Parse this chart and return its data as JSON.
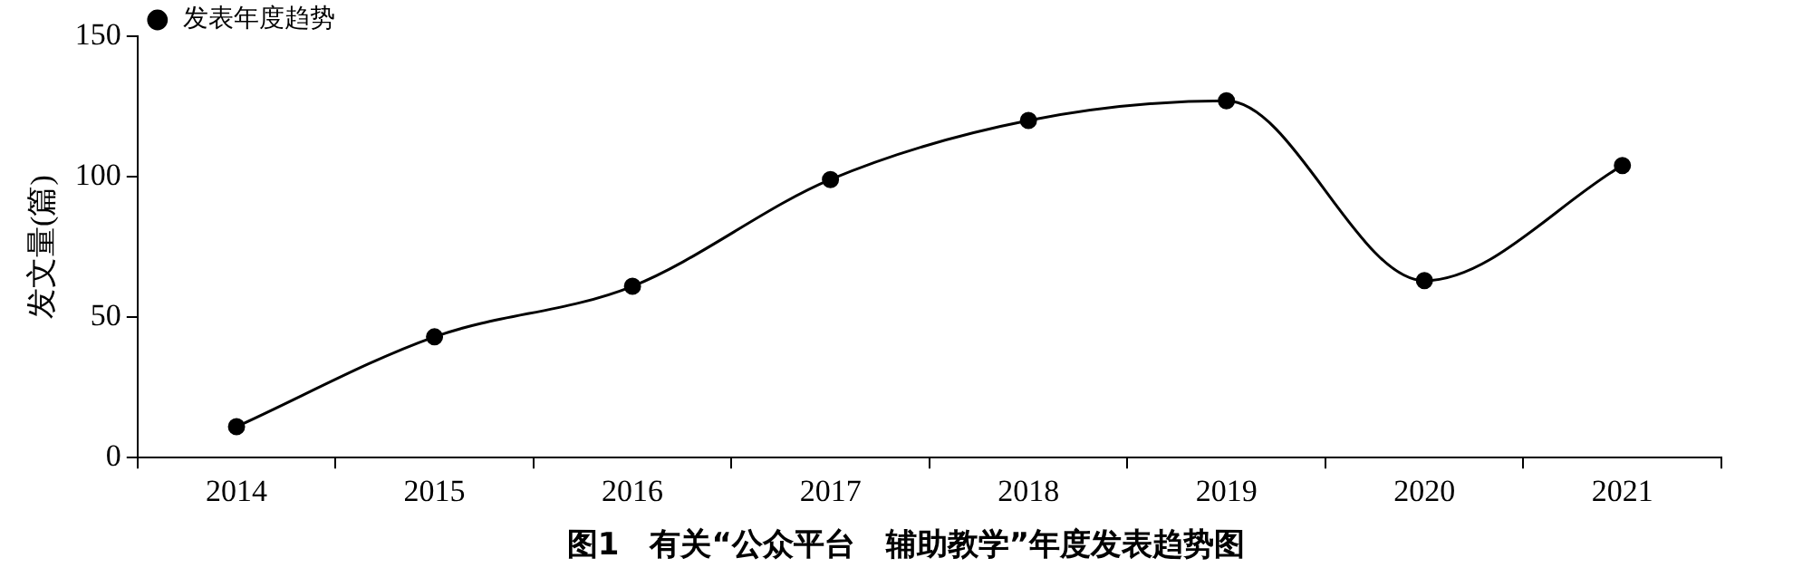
{
  "chart_data": {
    "type": "line",
    "title": "图1　有关“公众平台　辅助教学”年度发表趋势图",
    "ylabel": "发文量(篇)",
    "categories": [
      "2014",
      "2015",
      "2016",
      "2017",
      "2018",
      "2019",
      "2020",
      "2021"
    ],
    "series": [
      {
        "name": "发表年度趋势",
        "color": "#000000",
        "values": [
          11,
          43,
          61,
          99,
          120,
          127,
          63,
          104
        ]
      }
    ],
    "ylim": [
      0,
      150
    ],
    "yticks": [
      0,
      50,
      100,
      150
    ],
    "grid": false,
    "legend": "top left",
    "marker": "circle",
    "line_style": "solid"
  }
}
